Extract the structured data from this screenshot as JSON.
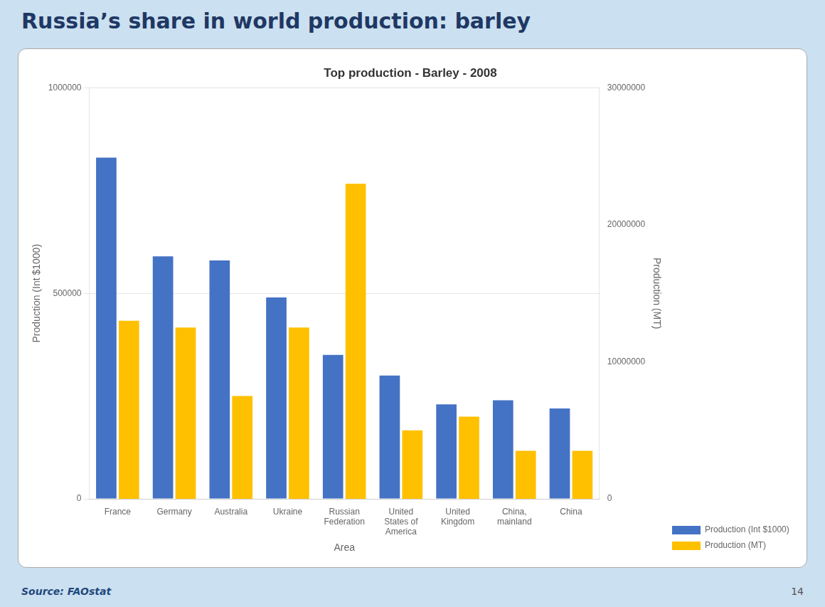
{
  "chart_data": {
    "type": "bar",
    "title": "Top production - Barley - 2008",
    "subtitle": "Russia’s share in world production: barley",
    "annotations": [
      "Source: FAOstat",
      "14"
    ],
    "xlabel": "Area",
    "ylabel": "Production (Int $1000)",
    "y2label": "Production (MT)",
    "categories": [
      "France",
      "Germany",
      "Australia",
      "Ukraine",
      "Russian\nFederation",
      "United\nStates of\nAmerica",
      "United\nKingdom",
      "China,\nmainland",
      "China"
    ],
    "series": [
      {
        "name": "Production (Int $1000)",
        "color": "#4472C4",
        "values": [
          830000,
          590000,
          580000,
          490000,
          350000,
          300000,
          230000,
          240000,
          220000
        ]
      },
      {
        "name": "Production (MT)",
        "color": "#FFC000",
        "axis": "y2",
        "values": [
          13000000,
          12500000,
          7500000,
          12500000,
          23000000,
          5000000,
          6000000,
          3500000,
          3500000
        ]
      }
    ],
    "ylim": [
      0,
      1000000
    ],
    "yticks": [
      0,
      500000,
      1000000
    ],
    "y2lim": [
      0,
      30000000
    ],
    "y2ticks": [
      0,
      10000000,
      20000000,
      30000000
    ],
    "grid": true,
    "legend": "right"
  }
}
